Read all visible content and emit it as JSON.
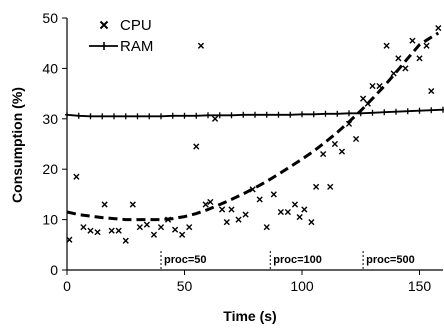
{
  "chart_data": {
    "type": "scatter",
    "xlabel": "Time (s)",
    "ylabel": "Consumption (%)",
    "xlim": [
      0,
      160
    ],
    "ylim": [
      0,
      50
    ],
    "x_ticks": [
      0,
      50,
      100,
      150
    ],
    "y_ticks": [
      0,
      10,
      20,
      30,
      40,
      50
    ],
    "grid": false,
    "legend_position": "top-left",
    "series": [
      {
        "name": "CPU",
        "marker": "x",
        "color": "#000000",
        "points": [
          [
            1,
            6
          ],
          [
            4,
            18.5
          ],
          [
            7,
            8.5
          ],
          [
            10,
            7.8
          ],
          [
            13,
            7.5
          ],
          [
            16,
            13
          ],
          [
            19,
            7.8
          ],
          [
            22,
            7.8
          ],
          [
            25,
            5.8
          ],
          [
            28,
            13
          ],
          [
            31,
            8.5
          ],
          [
            34,
            9
          ],
          [
            37,
            7
          ],
          [
            40,
            8.5
          ],
          [
            43,
            10
          ],
          [
            46,
            8
          ],
          [
            49,
            7
          ],
          [
            52,
            8.5
          ],
          [
            55,
            24.5
          ],
          [
            57,
            44.5
          ],
          [
            59,
            13
          ],
          [
            61,
            13.5
          ],
          [
            63,
            30
          ],
          [
            66,
            12
          ],
          [
            68,
            9.5
          ],
          [
            70,
            12
          ],
          [
            73,
            10
          ],
          [
            76,
            11
          ],
          [
            79,
            16
          ],
          [
            82,
            14
          ],
          [
            85,
            8.5
          ],
          [
            88,
            15
          ],
          [
            91,
            11.5
          ],
          [
            94,
            11.5
          ],
          [
            97,
            13
          ],
          [
            99,
            10.5
          ],
          [
            101,
            12
          ],
          [
            104,
            9.5
          ],
          [
            106,
            16.5
          ],
          [
            109,
            23
          ],
          [
            112,
            16.5
          ],
          [
            114,
            25
          ],
          [
            117,
            23.5
          ],
          [
            120,
            29
          ],
          [
            123,
            26
          ],
          [
            126,
            34
          ],
          [
            128,
            33
          ],
          [
            130,
            36.5
          ],
          [
            133,
            36.5
          ],
          [
            136,
            44.5
          ],
          [
            139,
            39
          ],
          [
            141,
            42
          ],
          [
            144,
            40
          ],
          [
            147,
            45.5
          ],
          [
            150,
            42
          ],
          [
            153,
            44.5
          ],
          [
            155,
            35.5
          ],
          [
            158,
            48
          ]
        ]
      },
      {
        "name": "RAM",
        "marker": "plus",
        "color": "#000000",
        "points": [
          [
            0,
            30.8
          ],
          [
            5,
            30.6
          ],
          [
            10,
            30.5
          ],
          [
            15,
            30.5
          ],
          [
            20,
            30.5
          ],
          [
            25,
            30.5
          ],
          [
            30,
            30.5
          ],
          [
            35,
            30.5
          ],
          [
            40,
            30.5
          ],
          [
            45,
            30.6
          ],
          [
            50,
            30.6
          ],
          [
            55,
            30.6
          ],
          [
            60,
            30.7
          ],
          [
            65,
            30.7
          ],
          [
            70,
            30.7
          ],
          [
            75,
            30.8
          ],
          [
            80,
            30.8
          ],
          [
            85,
            30.8
          ],
          [
            90,
            30.8
          ],
          [
            95,
            30.8
          ],
          [
            100,
            30.9
          ],
          [
            105,
            30.9
          ],
          [
            110,
            31
          ],
          [
            115,
            31
          ],
          [
            120,
            31.1
          ],
          [
            125,
            31.1
          ],
          [
            130,
            31.2
          ],
          [
            135,
            31.3
          ],
          [
            140,
            31.4
          ],
          [
            145,
            31.5
          ],
          [
            150,
            31.6
          ],
          [
            155,
            31.7
          ],
          [
            160,
            31.8
          ]
        ]
      }
    ],
    "trendline": {
      "style": "dashed",
      "points": [
        [
          0,
          11.5
        ],
        [
          5,
          11
        ],
        [
          10,
          10.7
        ],
        [
          15,
          10.4
        ],
        [
          20,
          10.2
        ],
        [
          25,
          10
        ],
        [
          30,
          10
        ],
        [
          35,
          10
        ],
        [
          40,
          10
        ],
        [
          45,
          10.2
        ],
        [
          50,
          10.6
        ],
        [
          55,
          11.2
        ],
        [
          60,
          12
        ],
        [
          65,
          13
        ],
        [
          70,
          14
        ],
        [
          75,
          15.1
        ],
        [
          80,
          16.3
        ],
        [
          85,
          17.6
        ],
        [
          90,
          19
        ],
        [
          95,
          20.5
        ],
        [
          100,
          22
        ],
        [
          105,
          23.6
        ],
        [
          110,
          25.4
        ],
        [
          115,
          27.3
        ],
        [
          120,
          29.4
        ],
        [
          125,
          31.6
        ],
        [
          130,
          34
        ],
        [
          135,
          36.5
        ],
        [
          140,
          39.2
        ],
        [
          145,
          42
        ],
        [
          150,
          44.7
        ],
        [
          155,
          46.2
        ],
        [
          158,
          47
        ]
      ]
    },
    "annotations": [
      {
        "x": 40,
        "text": "proc=50"
      },
      {
        "x": 86.5,
        "text": "proc=100"
      },
      {
        "x": 126,
        "text": "proc=500"
      }
    ]
  }
}
